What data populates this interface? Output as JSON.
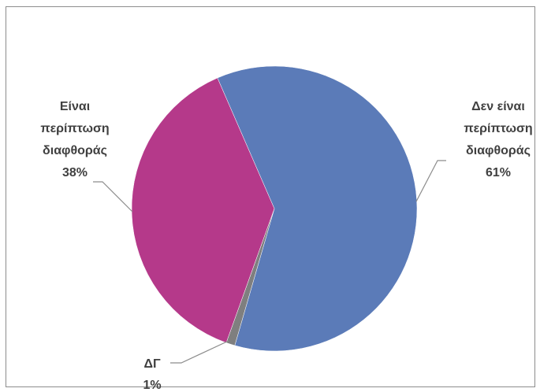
{
  "chart_data": {
    "type": "pie",
    "title": "",
    "slices": [
      {
        "label_lines": [
          "Δεν είναι",
          "περίπτωση",
          "διαφθοράς"
        ],
        "percent_label": "61%",
        "value": 61,
        "color": "#5b7bb8"
      },
      {
        "label_lines": [
          "ΔΓ"
        ],
        "percent_label": "1%",
        "value": 1,
        "color": "#7f7f7f"
      },
      {
        "label_lines": [
          "Είναι",
          "περίπτωση",
          "διαφθοράς"
        ],
        "percent_label": "38%",
        "value": 38,
        "color": "#b5398a"
      }
    ],
    "legend": "none",
    "data_labels": "outside with leader lines"
  }
}
